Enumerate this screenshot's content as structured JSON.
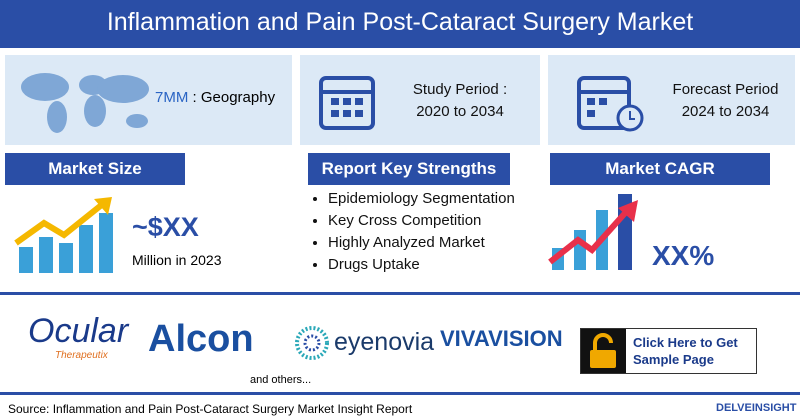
{
  "header": {
    "title": "Inflammation and Pain Post-Cataract Surgery Market"
  },
  "cards": [
    {
      "highlight": "7MM",
      "text": ": Geography"
    },
    {
      "line1": "Study Period :",
      "line2": "2020 to 2034"
    },
    {
      "line1": "Forecast Period",
      "line2": "2024 to 2034"
    }
  ],
  "sections": {
    "market_size": {
      "heading": "Market Size",
      "value": "~$XX",
      "note": "Million in 2023"
    },
    "strengths": {
      "heading": "Report Key Strengths",
      "items": [
        "Epidemiology Segmentation",
        "Key Cross Competition",
        "Highly Analyzed Market",
        "Drugs Uptake"
      ]
    },
    "cagr": {
      "heading": "Market CAGR",
      "value": "XX%"
    }
  },
  "companies": {
    "logos": [
      "Ocular",
      "Therapeutix",
      "Alcon",
      "eyenovia",
      "VIVAVISION"
    ],
    "others": "and others..."
  },
  "cta": "Click Here to Get Sample Page",
  "footer": {
    "source": "Source: Inflammation and Pain Post-Cataract Surgery Market Insight Report",
    "brand": "DELVEINSIGHT"
  }
}
